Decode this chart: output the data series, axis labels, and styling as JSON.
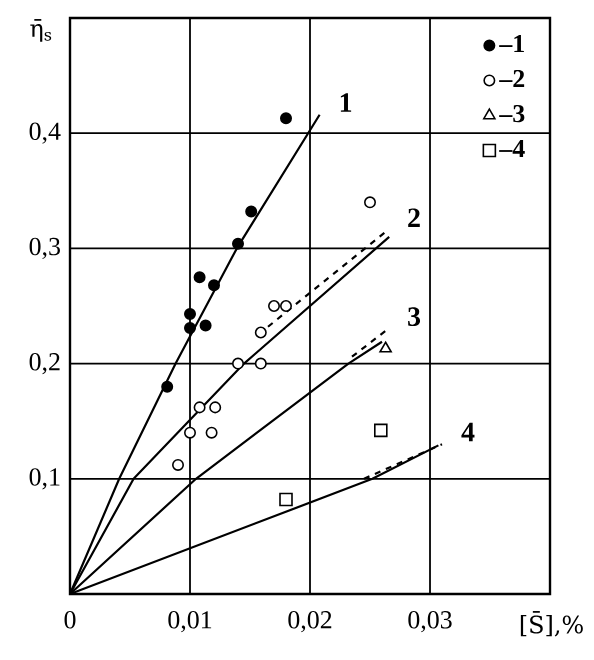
{
  "chart_data": {
    "type": "scatter",
    "xlabel": "[S̄],%",
    "ylabel": "η̄$_{s}$",
    "xlim": [
      0,
      0.04
    ],
    "ylim": [
      0,
      0.5
    ],
    "xticks": [
      {
        "value": 0,
        "label": "0"
      },
      {
        "value": 0.01,
        "label": "0,01"
      },
      {
        "value": 0.02,
        "label": "0,02"
      },
      {
        "value": 0.03,
        "label": "0,03"
      }
    ],
    "yticks": [
      {
        "value": 0.1,
        "label": "0,1"
      },
      {
        "value": 0.2,
        "label": "0,2"
      },
      {
        "value": 0.3,
        "label": "0,3"
      },
      {
        "value": 0.4,
        "label": "0,4"
      }
    ],
    "grid": true,
    "legend": "top right",
    "series": [
      {
        "name": "–1",
        "marker": "circle",
        "color": "#000000",
        "x": [
          0.0081,
          0.01,
          0.01,
          0.0113,
          0.0108,
          0.012,
          0.014,
          0.0151,
          0.018
        ],
        "values": [
          0.18,
          0.231,
          0.243,
          0.233,
          0.275,
          0.268,
          0.304,
          0.332,
          0.413
        ]
      },
      {
        "name": "–2",
        "marker": "circle",
        "color": "#ffffff",
        "x": [
          0.025,
          0.017,
          0.018,
          0.0159,
          0.014,
          0.0159,
          0.0108,
          0.0121,
          0.01,
          0.0118,
          0.009
        ],
        "values": [
          0.34,
          0.25,
          0.25,
          0.227,
          0.2,
          0.2,
          0.162,
          0.162,
          0.14,
          0.14,
          0.112
        ]
      },
      {
        "name": "–3",
        "marker": "triangle",
        "color": "#ffffff",
        "x": [
          0.0263
        ],
        "values": [
          0.213
        ]
      },
      {
        "name": "–4",
        "marker": "square",
        "color": "#ffffff",
        "x": [
          0.0259,
          0.018
        ],
        "values": [
          0.142,
          0.082
        ]
      },
      {
        "type": "line",
        "marker": "none",
        "line_style": "solid",
        "color": "#000000",
        "x": [
          0,
          0.0041,
          0.0088,
          0.0139,
          0.0208
        ],
        "values": [
          0,
          0.1,
          0.2,
          0.3,
          0.416
        ]
      },
      {
        "type": "line",
        "marker": "none",
        "line_style": "solid",
        "color": "#000000",
        "x": [
          0,
          0.0053,
          0.0145,
          0.0266
        ],
        "values": [
          0,
          0.1,
          0.2,
          0.31
        ]
      },
      {
        "type": "line",
        "marker": "none",
        "line_style": "dashed",
        "color": "#000000",
        "x": [
          0.0165,
          0.0265
        ],
        "values": [
          0.232,
          0.316
        ]
      },
      {
        "type": "line",
        "marker": "none",
        "line_style": "solid",
        "color": "#000000",
        "x": [
          0,
          0.0105,
          0.0232,
          0.026
        ],
        "values": [
          0,
          0.1,
          0.2,
          0.219
        ]
      },
      {
        "type": "line",
        "marker": "none",
        "line_style": "dashed",
        "color": "#000000",
        "x": [
          0.0235,
          0.0265
        ],
        "values": [
          0.206,
          0.23
        ]
      },
      {
        "type": "line",
        "marker": "none",
        "line_style": "solid",
        "color": "#000000",
        "x": [
          0,
          0.0252,
          0.0307
        ],
        "values": [
          0,
          0.1,
          0.129
        ]
      },
      {
        "type": "line",
        "marker": "none",
        "line_style": "dashed",
        "color": "#000000",
        "x": [
          0.0245,
          0.031
        ],
        "values": [
          0.1,
          0.13
        ]
      }
    ],
    "annotations": [
      {
        "text": "1",
        "x": 0.0208,
        "y": 0.416
      },
      {
        "text": "2",
        "x": 0.0265,
        "y": 0.316
      },
      {
        "text": "3",
        "x": 0.0265,
        "y": 0.23
      },
      {
        "text": "4",
        "x": 0.031,
        "y": 0.13
      }
    ]
  }
}
